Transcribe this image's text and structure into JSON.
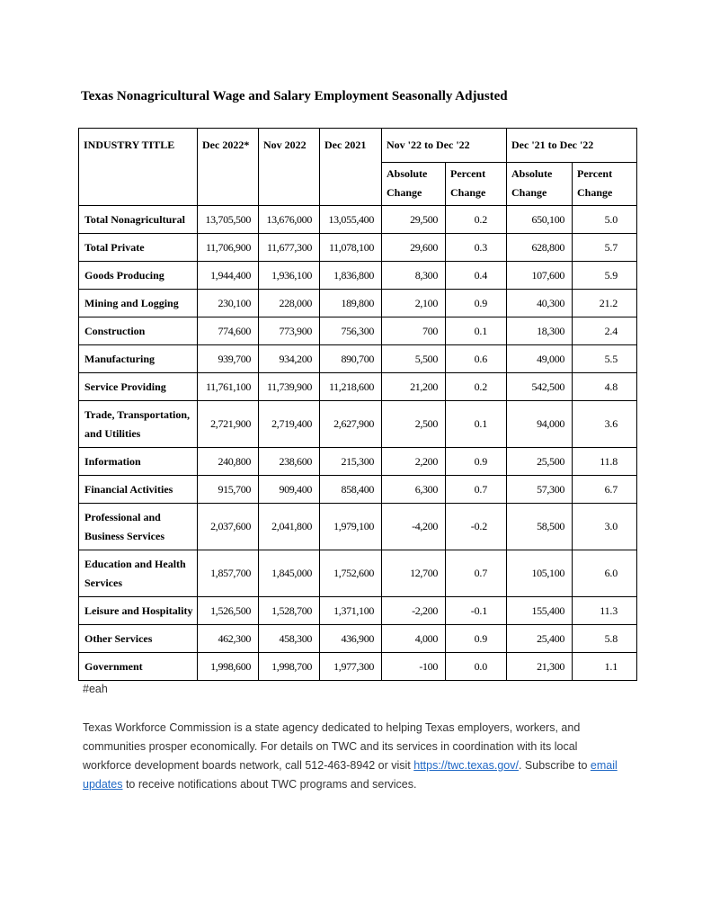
{
  "page": {
    "title": "Texas Nonagricultural Wage and Salary Employment Seasonally Adjusted",
    "tag": "#eah"
  },
  "colors": {
    "link": "#1f68c5",
    "table_text": "#000000",
    "footer_text": "#333333",
    "table_border": "#000000",
    "page_background": "#ffffff"
  },
  "table": {
    "header": {
      "industry_title": "INDUSTRY TITLE",
      "col_dec2022": "Dec 2022*",
      "col_nov2022": "Nov 2022",
      "col_dec2021": "Dec 2021",
      "group_nov22_dec22": "Nov '22 to Dec '22",
      "group_dec21_dec22": "Dec '21 to Dec '22",
      "sub_absolute": "Absolute Change",
      "sub_percent": "Percent Change"
    },
    "rows": [
      {
        "label": "Total Nonagricultural",
        "dec2022": "13,705,500",
        "nov2022": "13,676,000",
        "dec2021": "13,055,400",
        "abs_nov_dec": "29,500",
        "pct_nov_dec": "0.2",
        "abs_dec_dec": "650,100",
        "pct_dec_dec": "5.0"
      },
      {
        "label": "Total Private",
        "dec2022": "11,706,900",
        "nov2022": "11,677,300",
        "dec2021": "11,078,100",
        "abs_nov_dec": "29,600",
        "pct_nov_dec": "0.3",
        "abs_dec_dec": "628,800",
        "pct_dec_dec": "5.7"
      },
      {
        "label": "Goods Producing",
        "dec2022": "1,944,400",
        "nov2022": "1,936,100",
        "dec2021": "1,836,800",
        "abs_nov_dec": "8,300",
        "pct_nov_dec": "0.4",
        "abs_dec_dec": "107,600",
        "pct_dec_dec": "5.9"
      },
      {
        "label": "Mining and Logging",
        "dec2022": "230,100",
        "nov2022": "228,000",
        "dec2021": "189,800",
        "abs_nov_dec": "2,100",
        "pct_nov_dec": "0.9",
        "abs_dec_dec": "40,300",
        "pct_dec_dec": "21.2"
      },
      {
        "label": "Construction",
        "dec2022": "774,600",
        "nov2022": "773,900",
        "dec2021": "756,300",
        "abs_nov_dec": "700",
        "pct_nov_dec": "0.1",
        "abs_dec_dec": "18,300",
        "pct_dec_dec": "2.4"
      },
      {
        "label": "Manufacturing",
        "dec2022": "939,700",
        "nov2022": "934,200",
        "dec2021": "890,700",
        "abs_nov_dec": "5,500",
        "pct_nov_dec": "0.6",
        "abs_dec_dec": "49,000",
        "pct_dec_dec": "5.5"
      },
      {
        "label": "Service Providing",
        "dec2022": "11,761,100",
        "nov2022": "11,739,900",
        "dec2021": "11,218,600",
        "abs_nov_dec": "21,200",
        "pct_nov_dec": "0.2",
        "abs_dec_dec": "542,500",
        "pct_dec_dec": "4.8"
      },
      {
        "label": "Trade, Transportation,\nand Utilities",
        "dec2022": "2,721,900",
        "nov2022": "2,719,400",
        "dec2021": "2,627,900",
        "abs_nov_dec": "2,500",
        "pct_nov_dec": "0.1",
        "abs_dec_dec": "94,000",
        "pct_dec_dec": "3.6"
      },
      {
        "label": "Information",
        "dec2022": "240,800",
        "nov2022": "238,600",
        "dec2021": "215,300",
        "abs_nov_dec": "2,200",
        "pct_nov_dec": "0.9",
        "abs_dec_dec": "25,500",
        "pct_dec_dec": "11.8"
      },
      {
        "label": "Financial Activities",
        "dec2022": "915,700",
        "nov2022": "909,400",
        "dec2021": "858,400",
        "abs_nov_dec": "6,300",
        "pct_nov_dec": "0.7",
        "abs_dec_dec": "57,300",
        "pct_dec_dec": "6.7"
      },
      {
        "label": "Professional and\nBusiness Services",
        "dec2022": "2,037,600",
        "nov2022": "2,041,800",
        "dec2021": "1,979,100",
        "abs_nov_dec": "-4,200",
        "pct_nov_dec": "-0.2",
        "abs_dec_dec": "58,500",
        "pct_dec_dec": "3.0"
      },
      {
        "label": "Education and Health\nServices",
        "dec2022": "1,857,700",
        "nov2022": "1,845,000",
        "dec2021": "1,752,600",
        "abs_nov_dec": "12,700",
        "pct_nov_dec": "0.7",
        "abs_dec_dec": "105,100",
        "pct_dec_dec": "6.0"
      },
      {
        "label": "Leisure and Hospitality",
        "dec2022": "1,526,500",
        "nov2022": "1,528,700",
        "dec2021": "1,371,100",
        "abs_nov_dec": "-2,200",
        "pct_nov_dec": "-0.1",
        "abs_dec_dec": "155,400",
        "pct_dec_dec": "11.3"
      },
      {
        "label": "Other Services",
        "dec2022": "462,300",
        "nov2022": "458,300",
        "dec2021": "436,900",
        "abs_nov_dec": "4,000",
        "pct_nov_dec": "0.9",
        "abs_dec_dec": "25,400",
        "pct_dec_dec": "5.8"
      },
      {
        "label": "Government",
        "dec2022": "1,998,600",
        "nov2022": "1,998,700",
        "dec2021": "1,977,300",
        "abs_nov_dec": "-100",
        "pct_nov_dec": "0.0",
        "abs_dec_dec": "21,300",
        "pct_dec_dec": "1.1"
      }
    ]
  },
  "footer": {
    "segments": [
      {
        "text": "Texas Workforce Commission is a state agency dedicated to helping Texas employers, workers, and communities prosper economically. For details on TWC and its services in coordination with its local workforce development boards network, call 512-463-8942 or visit ",
        "link": false
      },
      {
        "text": "https://twc.texas.gov/",
        "link": true,
        "name": "twc-website-link"
      },
      {
        "text": ". Subscribe to ",
        "link": false
      },
      {
        "text": "email updates",
        "link": true,
        "name": "email-updates-link"
      },
      {
        "text": " to receive notifications about TWC programs and services.",
        "link": false
      }
    ]
  }
}
